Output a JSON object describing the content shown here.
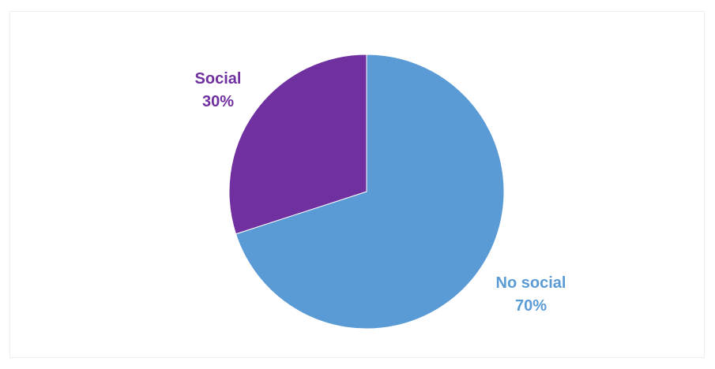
{
  "chart_data": {
    "type": "pie",
    "title": "",
    "categories": [
      "No social",
      "Social"
    ],
    "values": [
      70,
      30
    ],
    "series": [
      {
        "values": [
          70,
          30
        ],
        "colors": [
          "#5b9bd5",
          "#7030a0"
        ],
        "labels": [
          {
            "name": "No social",
            "percent": "70%"
          },
          {
            "name": "Social",
            "percent": "30%"
          }
        ]
      }
    ],
    "start_angle_deg": 0,
    "direction": "clockwise",
    "legend": "none",
    "data_labels": "outside"
  }
}
